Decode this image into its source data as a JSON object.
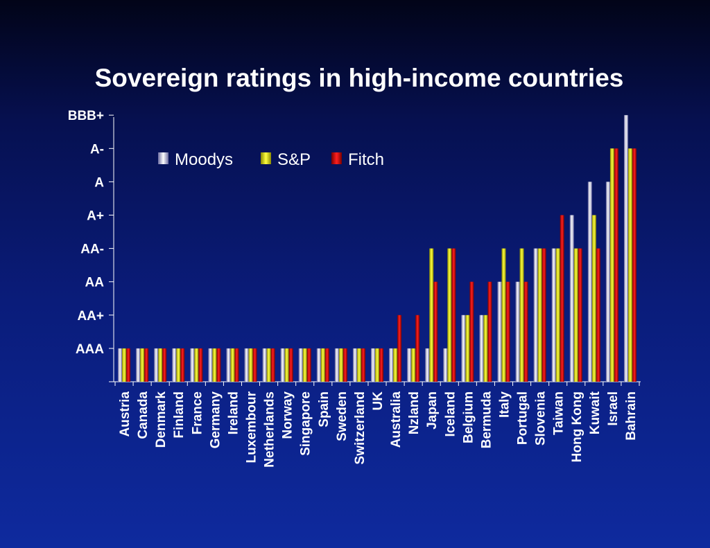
{
  "chart_data": {
    "type": "bar",
    "title": "Sovereign ratings in high-income countries",
    "xlabel": "",
    "ylabel": "",
    "y_tick_labels": [
      "AAA",
      "AA+",
      "AA",
      "AA-",
      "A+",
      "A",
      "A-",
      "BBB+"
    ],
    "ylim": [
      0,
      8
    ],
    "legend_position": "top-left",
    "grid": false,
    "categories": [
      "Austria",
      "Canada",
      "Denmark",
      "Finland",
      "France",
      "Germany",
      "Ireland",
      "Luxembour",
      "Netherlands",
      "Norway",
      "Singapore",
      "Spain",
      "Sweden",
      "Switzerland",
      "UK",
      "Australia",
      "Nzland",
      "Japan",
      "Iceland",
      "Belgium",
      "Bermuda",
      "Italy",
      "Portugal",
      "Slovenia",
      "Taiwan",
      "Hong Kong",
      "Kuwait",
      "Israel",
      "Bahrain"
    ],
    "series": [
      {
        "name": "Moodys",
        "color": "#c8c8ec",
        "values": [
          1,
          1,
          1,
          1,
          1,
          1,
          1,
          1,
          1,
          1,
          1,
          1,
          1,
          1,
          1,
          1,
          1,
          1,
          1,
          2,
          2,
          3,
          3,
          4,
          4,
          5,
          6,
          6,
          8
        ]
      },
      {
        "name": "S&P",
        "color": "#f2f200",
        "values": [
          1,
          1,
          1,
          1,
          1,
          1,
          1,
          1,
          1,
          1,
          1,
          1,
          1,
          1,
          1,
          1,
          1,
          4,
          4,
          2,
          2,
          4,
          4,
          4,
          4,
          4,
          5,
          7,
          7
        ]
      },
      {
        "name": "Fitch",
        "color": "#e00000",
        "values": [
          1,
          1,
          1,
          1,
          1,
          1,
          1,
          1,
          1,
          1,
          1,
          1,
          1,
          1,
          1,
          2,
          2,
          3,
          4,
          3,
          3,
          3,
          3,
          4,
          5,
          4,
          4,
          7,
          7
        ]
      }
    ]
  }
}
